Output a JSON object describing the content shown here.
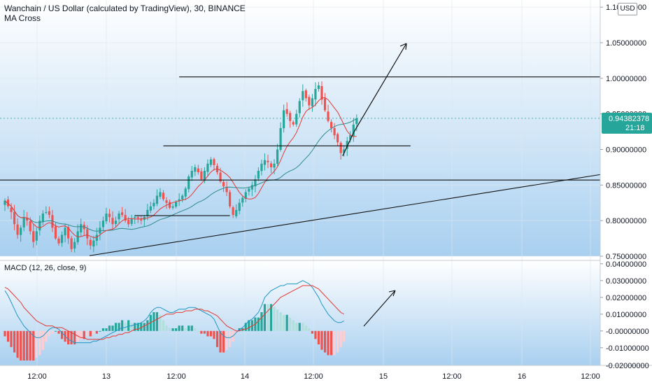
{
  "header": {
    "title": "Wanchain / US Dollar (calculated by TradingView), 30, BINANCE",
    "indicator": "MA Cross",
    "currency": "USD"
  },
  "chart_data": [
    {
      "type": "candlestick",
      "name": "price",
      "ylim": [
        0.75,
        1.11
      ],
      "y_ticks": [
        {
          "v": 1.1,
          "label": "1.10000000"
        },
        {
          "v": 1.05,
          "label": "1.05000000"
        },
        {
          "v": 1.0,
          "label": "1.00000000"
        },
        {
          "v": 0.95,
          "label": "0.95000000"
        },
        {
          "v": 0.9,
          "label": "0.90000000"
        },
        {
          "v": 0.85,
          "label": "0.85000000"
        },
        {
          "v": 0.8,
          "label": "0.80000000"
        },
        {
          "v": 0.75,
          "label": "0.75000000"
        }
      ],
      "x_ticks": [
        "12:00",
        "13",
        "12:00",
        "14",
        "12:00",
        "15",
        "12:00",
        "16",
        "12:00"
      ],
      "current_price": {
        "value": 0.94382378,
        "label": "0.94382378",
        "countdown": "21:18"
      },
      "closes": [
        0.828,
        0.82,
        0.812,
        0.795,
        0.78,
        0.79,
        0.805,
        0.8,
        0.785,
        0.77,
        0.785,
        0.8,
        0.81,
        0.812,
        0.808,
        0.79,
        0.775,
        0.768,
        0.78,
        0.79,
        0.775,
        0.76,
        0.77,
        0.785,
        0.795,
        0.788,
        0.775,
        0.765,
        0.772,
        0.78,
        0.79,
        0.8,
        0.81,
        0.805,
        0.795,
        0.8,
        0.81,
        0.808,
        0.8,
        0.795,
        0.802,
        0.805,
        0.803,
        0.8,
        0.805,
        0.815,
        0.82,
        0.825,
        0.835,
        0.84,
        0.83,
        0.825,
        0.818,
        0.82,
        0.826,
        0.83,
        0.835,
        0.845,
        0.862,
        0.87,
        0.875,
        0.868,
        0.858,
        0.87,
        0.88,
        0.886,
        0.878,
        0.868,
        0.855,
        0.848,
        0.84,
        0.82,
        0.808,
        0.815,
        0.825,
        0.832,
        0.84,
        0.845,
        0.85,
        0.858,
        0.87,
        0.88,
        0.885,
        0.882,
        0.875,
        0.88,
        0.9,
        0.93,
        0.955,
        0.95,
        0.94,
        0.935,
        0.95,
        0.968,
        0.982,
        0.972,
        0.962,
        0.972,
        0.985,
        0.99,
        0.97,
        0.955,
        0.94,
        0.93,
        0.92,
        0.91,
        0.895,
        0.9,
        0.912,
        0.92,
        0.935,
        0.944
      ],
      "horizontal_lines": [
        {
          "y": 1.002,
          "x_from_candle": 55,
          "x_to_edge": true
        },
        {
          "y": 0.905,
          "x_from_candle": 50,
          "x_to_candle": 128
        },
        {
          "y": 0.807,
          "x_from_candle": 41,
          "x_to_candle": 71
        },
        {
          "y": 0.857,
          "full_width": true
        }
      ],
      "trend_line": {
        "from": [
          0.746,
          20
        ],
        "to": [
          0.845,
          160
        ]
      },
      "ma_fast_period": 9,
      "ma_slow_period": 26,
      "colors": {
        "up": "#26a69a",
        "down": "#ef5350",
        "ma_fast": "#e53935",
        "ma_slow": "#2e8b8b",
        "bg_top": "#ffffff",
        "bg_bottom": "#a9d0f0"
      }
    },
    {
      "type": "histogram",
      "name": "MACD",
      "label": "MACD (12, 26, close, 9)",
      "ylim": [
        -0.0205,
        0.042
      ],
      "y_ticks": [
        {
          "v": 0.04,
          "label": "0.04000000"
        },
        {
          "v": 0.03,
          "label": "0.03000000"
        },
        {
          "v": 0.02,
          "label": "0.02000000"
        },
        {
          "v": 0.01,
          "label": "0.01000000"
        },
        {
          "v": -0.0,
          "label": "-0.00000000"
        },
        {
          "v": -0.01,
          "label": "-0.01000000"
        },
        {
          "v": -0.02,
          "label": "-0.02000000"
        }
      ],
      "macd": [
        0.024,
        0.021,
        0.017,
        0.013,
        0.009,
        0.006,
        0.003,
        0.001,
        -0.001,
        -0.003,
        -0.004,
        -0.004,
        -0.003,
        -0.001,
        0.001,
        0.002,
        0.002,
        0.001,
        -0.001,
        -0.003,
        -0.005,
        -0.006,
        -0.007,
        -0.007,
        -0.007,
        -0.007,
        -0.007,
        -0.007,
        -0.006,
        -0.006,
        -0.005,
        -0.004,
        -0.003,
        -0.002,
        -0.001,
        0.0,
        0.001,
        0.002,
        0.002,
        0.003,
        0.003,
        0.004,
        0.004,
        0.005,
        0.006,
        0.008,
        0.011,
        0.013,
        0.014,
        0.014,
        0.013,
        0.012,
        0.011,
        0.011,
        0.012,
        0.013,
        0.013,
        0.013,
        0.014,
        0.014,
        0.014,
        0.013,
        0.012,
        0.011,
        0.01,
        0.009,
        0.007,
        0.003,
        -0.001,
        -0.003,
        -0.004,
        -0.004,
        -0.003,
        -0.001,
        0.001,
        0.002,
        0.004,
        0.006,
        0.007,
        0.009,
        0.011,
        0.015,
        0.02,
        0.022,
        0.024,
        0.025,
        0.026,
        0.027,
        0.027,
        0.028,
        0.028,
        0.028,
        0.028,
        0.029,
        0.03,
        0.029,
        0.028,
        0.026,
        0.023,
        0.02,
        0.016,
        0.013,
        0.01,
        0.008,
        0.006,
        0.005,
        0.005,
        0.006
      ],
      "signal": [
        0.026,
        0.025,
        0.023,
        0.021,
        0.019,
        0.017,
        0.014,
        0.012,
        0.01,
        0.008,
        0.006,
        0.005,
        0.004,
        0.003,
        0.003,
        0.003,
        0.002,
        0.002,
        0.002,
        0.001,
        0.0,
        -0.001,
        -0.002,
        -0.003,
        -0.004,
        -0.004,
        -0.005,
        -0.005,
        -0.005,
        -0.005,
        -0.005,
        -0.005,
        -0.004,
        -0.004,
        -0.003,
        -0.003,
        -0.002,
        -0.002,
        -0.001,
        -0.001,
        0.0,
        0.001,
        0.001,
        0.002,
        0.003,
        0.004,
        0.005,
        0.006,
        0.007,
        0.008,
        0.009,
        0.01,
        0.01,
        0.01,
        0.011,
        0.011,
        0.011,
        0.012,
        0.012,
        0.012,
        0.013,
        0.013,
        0.013,
        0.012,
        0.012,
        0.011,
        0.01,
        0.009,
        0.007,
        0.005,
        0.003,
        0.002,
        0.001,
        0.0,
        0.0,
        0.001,
        0.001,
        0.002,
        0.003,
        0.004,
        0.006,
        0.008,
        0.01,
        0.012,
        0.014,
        0.016,
        0.018,
        0.02,
        0.021,
        0.022,
        0.023,
        0.024,
        0.025,
        0.026,
        0.027,
        0.027,
        0.027,
        0.027,
        0.026,
        0.025,
        0.023,
        0.021,
        0.019,
        0.017,
        0.015,
        0.013,
        0.011,
        0.01
      ],
      "colors": {
        "macd": "#2196c4",
        "signal": "#e53935",
        "hist_up_strong": "#26a69a",
        "hist_up_weak": "#b2dfdb",
        "hist_down_strong": "#ef5350",
        "hist_down_weak": "#ffcdd2"
      }
    }
  ]
}
